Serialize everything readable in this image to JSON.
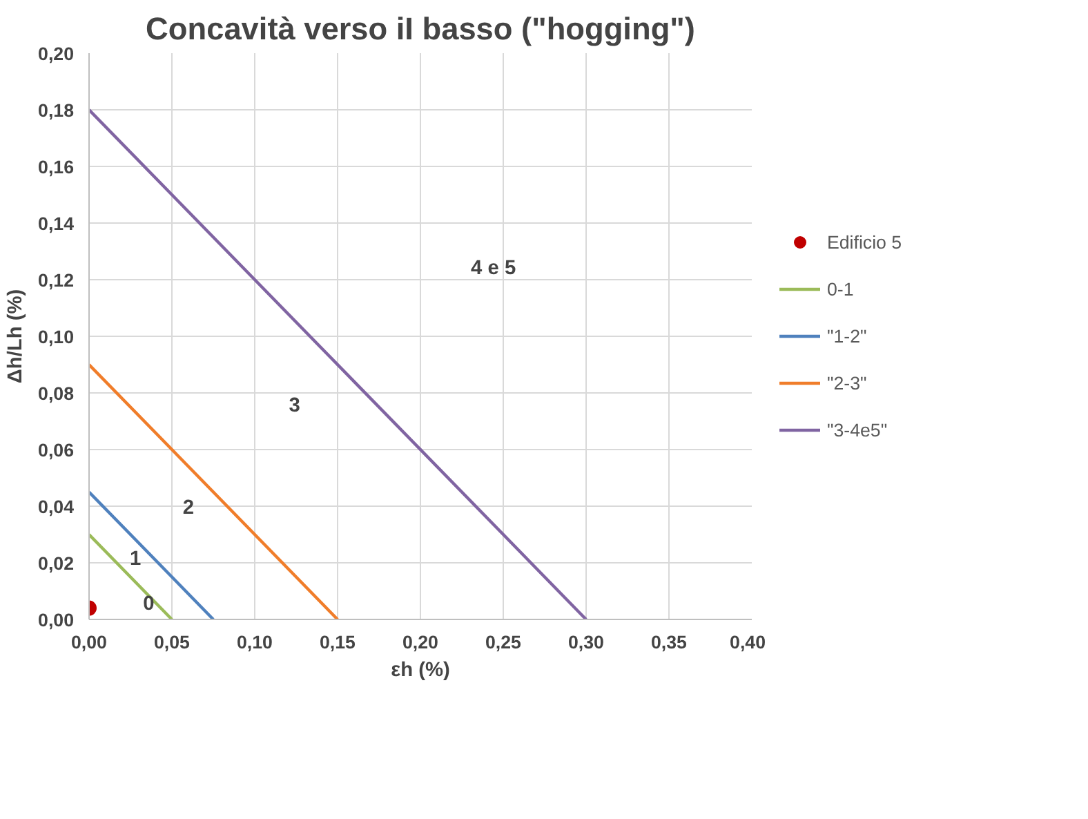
{
  "chart_data": {
    "type": "line",
    "title": "Concavità verso iI basso (\"hogging\")",
    "xlabel": "εh (%)",
    "ylabel": "Δh/Lh (%)",
    "series": [
      {
        "name": "Edificio 5",
        "type": "scatter",
        "color": "#c00000",
        "x": [
          0.0
        ],
        "values": [
          0.004
        ],
        "marker": "circle"
      },
      {
        "name": "0-1",
        "color": "#9bbb59",
        "x": [
          0.0,
          0.05
        ],
        "values": [
          0.03,
          0.0
        ]
      },
      {
        "name": "\"1-2\"",
        "color": "#4f81bd",
        "x": [
          0.0,
          0.075
        ],
        "values": [
          0.045,
          0.0
        ]
      },
      {
        "name": "\"2-3\"",
        "color": "#f07d2a",
        "x": [
          0.0,
          0.15
        ],
        "values": [
          0.09,
          0.0
        ]
      },
      {
        "name": "\"3-4e5\"",
        "color": "#8064a2",
        "x": [
          0.0,
          0.3
        ],
        "values": [
          0.18,
          0.0
        ]
      }
    ],
    "annotations": [
      "0",
      "1",
      "2",
      "3",
      "4 e 5"
    ],
    "xlim": [
      0,
      0.4
    ],
    "ylim": [
      0,
      0.2
    ],
    "xticks": [
      {
        "value": 0,
        "label": "0,00"
      },
      {
        "value": 0.05,
        "label": "0,05"
      },
      {
        "value": 0.1,
        "label": "0,10"
      },
      {
        "value": 0.15,
        "label": "0,15"
      },
      {
        "value": 0.2,
        "label": "0,20"
      },
      {
        "value": 0.25,
        "label": "0,25"
      },
      {
        "value": 0.3,
        "label": "0,30"
      },
      {
        "value": 0.35,
        "label": "0,35"
      },
      {
        "value": 0.4,
        "label": "0,40"
      }
    ],
    "yticks": [
      {
        "value": 0,
        "label": "0,00"
      },
      {
        "value": 0.02,
        "label": "0,02"
      },
      {
        "value": 0.04,
        "label": "0,04"
      },
      {
        "value": 0.06,
        "label": "0,06"
      },
      {
        "value": 0.08,
        "label": "0,08"
      },
      {
        "value": 0.1,
        "label": "0,10"
      },
      {
        "value": 0.12,
        "label": "0,12"
      },
      {
        "value": 0.14,
        "label": "0,14"
      },
      {
        "value": 0.16,
        "label": "0,16"
      },
      {
        "value": 0.18,
        "label": "0,18"
      },
      {
        "value": 0.2,
        "label": "0,20"
      }
    ],
    "grid": true,
    "legend": "right"
  }
}
